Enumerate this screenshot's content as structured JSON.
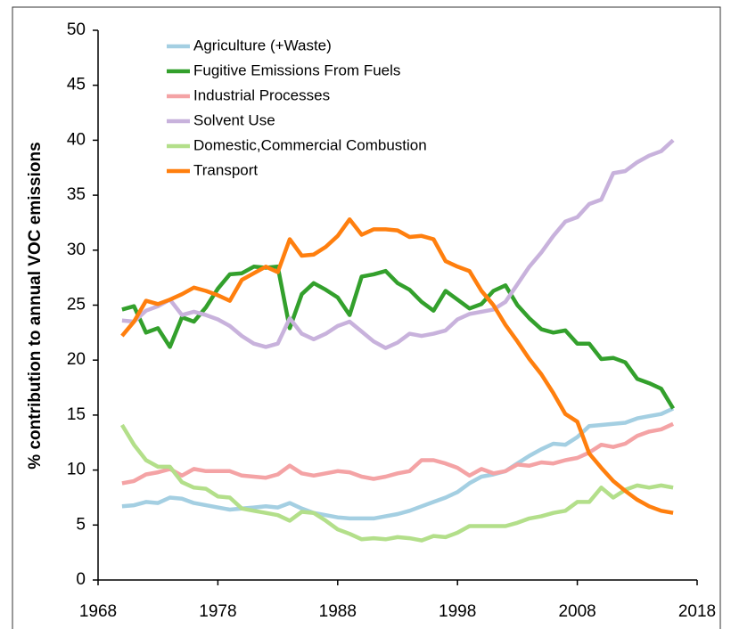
{
  "chart_data": {
    "type": "line",
    "y_label": "% contribution to annual VOC emissions",
    "x": [
      1970,
      1971,
      1972,
      1973,
      1974,
      1975,
      1976,
      1977,
      1978,
      1979,
      1980,
      1981,
      1982,
      1983,
      1984,
      1985,
      1986,
      1987,
      1988,
      1989,
      1990,
      1991,
      1992,
      1993,
      1994,
      1995,
      1996,
      1997,
      1998,
      1999,
      2000,
      2001,
      2002,
      2003,
      2004,
      2005,
      2006,
      2007,
      2008,
      2009,
      2010,
      2011,
      2012,
      2013,
      2014,
      2015,
      2016
    ],
    "xlim": [
      1968,
      2018
    ],
    "xticks": [
      1968,
      1978,
      1988,
      1998,
      2008,
      2018
    ],
    "ylim": [
      0,
      50
    ],
    "yticks": [
      0,
      5,
      10,
      15,
      20,
      25,
      30,
      35,
      40,
      45,
      50
    ],
    "legend": "upper left",
    "series": [
      {
        "name": "Agriculture (+Waste)",
        "color": "#a4cfe2",
        "values": [
          6.7,
          6.8,
          7.1,
          7.0,
          7.5,
          7.4,
          7.0,
          6.8,
          6.6,
          6.4,
          6.5,
          6.6,
          6.7,
          6.6,
          7.0,
          6.5,
          6.1,
          5.9,
          5.7,
          5.6,
          5.6,
          5.6,
          5.8,
          6.0,
          6.3,
          6.7,
          7.1,
          7.5,
          8.0,
          8.8,
          9.4,
          9.6,
          9.9,
          10.6,
          11.3,
          11.9,
          12.4,
          12.3,
          13.0,
          14.0,
          14.1,
          14.2,
          14.3,
          14.7,
          14.9,
          15.1,
          15.6
        ]
      },
      {
        "name": "Fugitive Emissions From Fuels",
        "color": "#33a02c",
        "values": [
          24.6,
          24.9,
          22.5,
          22.9,
          21.2,
          23.9,
          23.5,
          24.8,
          26.5,
          27.8,
          27.9,
          28.5,
          28.4,
          28.5,
          22.9,
          26.0,
          27.0,
          26.4,
          25.7,
          24.1,
          27.6,
          27.8,
          28.1,
          27.0,
          26.4,
          25.3,
          24.5,
          26.3,
          25.5,
          24.7,
          25.1,
          26.3,
          26.8,
          25.0,
          23.8,
          22.8,
          22.5,
          22.7,
          21.5,
          21.5,
          20.1,
          20.2,
          19.8,
          18.3,
          17.9,
          17.4,
          15.6
        ]
      },
      {
        "name": "Industrial Processes",
        "color": "#f4a3a5",
        "values": [
          8.8,
          9.0,
          9.6,
          9.8,
          10.1,
          9.5,
          10.1,
          9.9,
          9.9,
          9.9,
          9.5,
          9.4,
          9.3,
          9.6,
          10.4,
          9.7,
          9.5,
          9.7,
          9.9,
          9.8,
          9.4,
          9.2,
          9.4,
          9.7,
          9.9,
          10.9,
          10.9,
          10.6,
          10.2,
          9.5,
          10.1,
          9.7,
          9.9,
          10.5,
          10.4,
          10.7,
          10.6,
          10.9,
          11.1,
          11.6,
          12.3,
          12.1,
          12.4,
          13.1,
          13.5,
          13.7,
          14.2
        ]
      },
      {
        "name": "Solvent Use",
        "color": "#c8b2dc",
        "values": [
          23.6,
          23.5,
          24.5,
          24.9,
          25.5,
          24.1,
          24.4,
          24.1,
          23.7,
          23.1,
          22.2,
          21.5,
          21.2,
          21.5,
          23.8,
          22.4,
          21.9,
          22.4,
          23.1,
          23.5,
          22.6,
          21.7,
          21.1,
          21.6,
          22.4,
          22.2,
          22.4,
          22.7,
          23.7,
          24.2,
          24.4,
          24.6,
          25.3,
          26.9,
          28.5,
          29.8,
          31.3,
          32.6,
          33.0,
          34.2,
          34.6,
          37.0,
          37.2,
          38.0,
          38.6,
          39.0,
          40.0
        ]
      },
      {
        "name": "Domestic,Commercial Combustion",
        "color": "#b3df8a",
        "values": [
          14.1,
          12.3,
          10.9,
          10.3,
          10.3,
          8.9,
          8.4,
          8.3,
          7.6,
          7.5,
          6.5,
          6.3,
          6.1,
          5.9,
          5.4,
          6.2,
          6.1,
          5.4,
          4.6,
          4.2,
          3.7,
          3.8,
          3.7,
          3.9,
          3.8,
          3.6,
          4.0,
          3.9,
          4.3,
          4.9,
          4.9,
          4.9,
          4.9,
          5.2,
          5.6,
          5.8,
          6.1,
          6.3,
          7.1,
          7.1,
          8.4,
          7.5,
          8.2,
          8.6,
          8.4,
          8.6,
          8.4
        ]
      },
      {
        "name": "Transport",
        "color": "#ff7f0e",
        "values": [
          22.2,
          23.5,
          25.4,
          25.1,
          25.5,
          26.0,
          26.6,
          26.3,
          25.9,
          25.4,
          27.3,
          27.9,
          28.5,
          28.0,
          31.0,
          29.5,
          29.6,
          30.3,
          31.3,
          32.8,
          31.4,
          31.9,
          31.9,
          31.8,
          31.2,
          31.3,
          31.0,
          29.0,
          28.5,
          28.1,
          26.3,
          25.0,
          23.2,
          21.7,
          20.1,
          18.7,
          17.0,
          15.1,
          14.4,
          11.5,
          10.2,
          9.0,
          8.1,
          7.3,
          6.7,
          6.3,
          6.1
        ]
      }
    ]
  }
}
